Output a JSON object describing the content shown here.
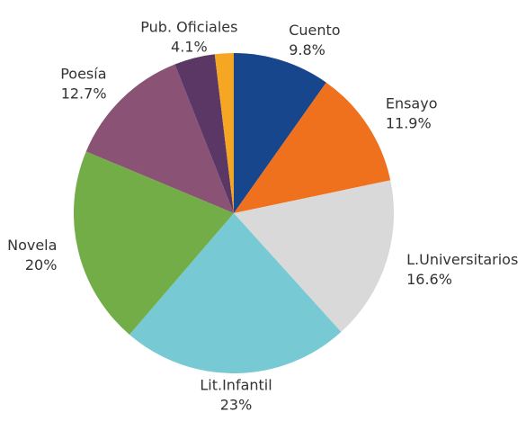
{
  "chart_data": {
    "type": "pie",
    "categories": [
      "Cuento",
      "Ensayo",
      "L.Universitarios",
      "Lit.Infantil",
      "Novela",
      "Poesía",
      "Pub. Oficiales",
      null
    ],
    "values": [
      9.8,
      11.9,
      16.6,
      23,
      20,
      12.7,
      4.1,
      1.9
    ],
    "value_labels": [
      "9.8%",
      "11.9%",
      "16.6%",
      "23%",
      "20%",
      "12.7%",
      "4.1%",
      null
    ],
    "colors": [
      "#17468c",
      "#ef711e",
      "#d9d9d9",
      "#77c9d4",
      "#72ad48",
      "#8a5274",
      "#5b3766",
      "#f5a623"
    ]
  }
}
